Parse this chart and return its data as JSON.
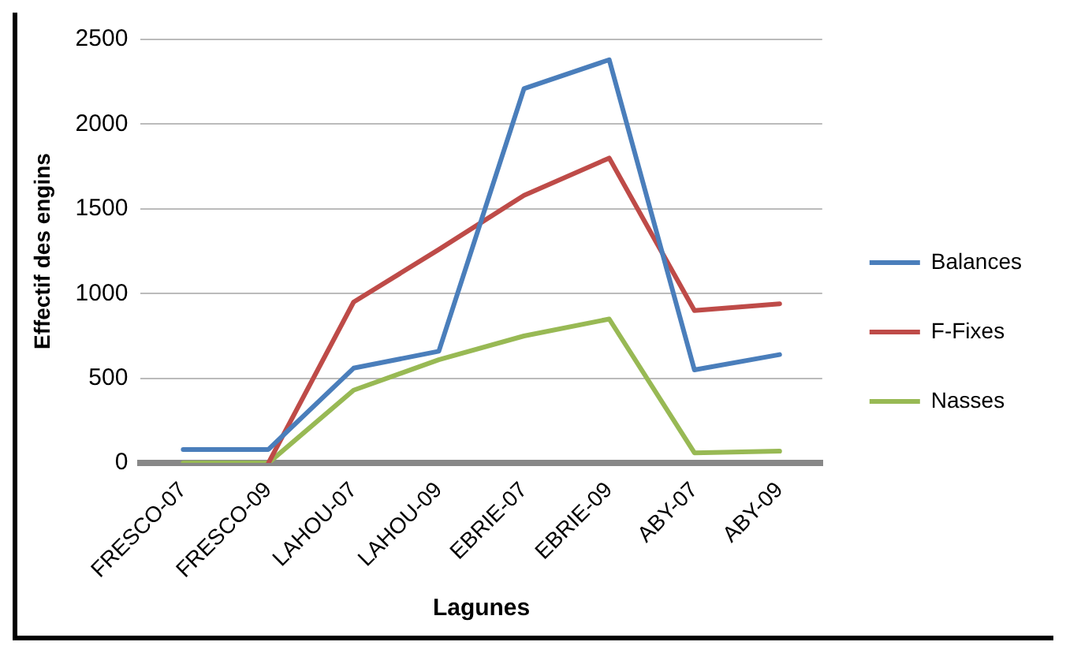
{
  "chart_data": {
    "type": "line",
    "xlabel": "Lagunes",
    "ylabel": "Effectif des engins",
    "categories": [
      "FRESCO-07",
      "FRESCO-09",
      "LAHOU-07",
      "LAHOU-09",
      "EBRIE-07",
      "EBRIE-09",
      "ABY-07",
      "ABY-09"
    ],
    "series": [
      {
        "name": "Balances",
        "color": "#4a7ebb",
        "values": [
          80,
          80,
          560,
          660,
          2210,
          2380,
          550,
          640
        ]
      },
      {
        "name": "F-Fixes",
        "color": "#be4b48",
        "values": [
          null,
          0,
          950,
          1260,
          1580,
          1800,
          900,
          940
        ]
      },
      {
        "name": "Nasses",
        "color": "#98b954",
        "values": [
          0,
          0,
          430,
          610,
          750,
          850,
          60,
          70
        ]
      }
    ],
    "ylim": [
      0,
      2500
    ],
    "yticks": [
      0,
      500,
      1000,
      1500,
      2000,
      2500
    ],
    "grid": "y",
    "legend": "right",
    "marker": "none",
    "line_style": "solid"
  }
}
